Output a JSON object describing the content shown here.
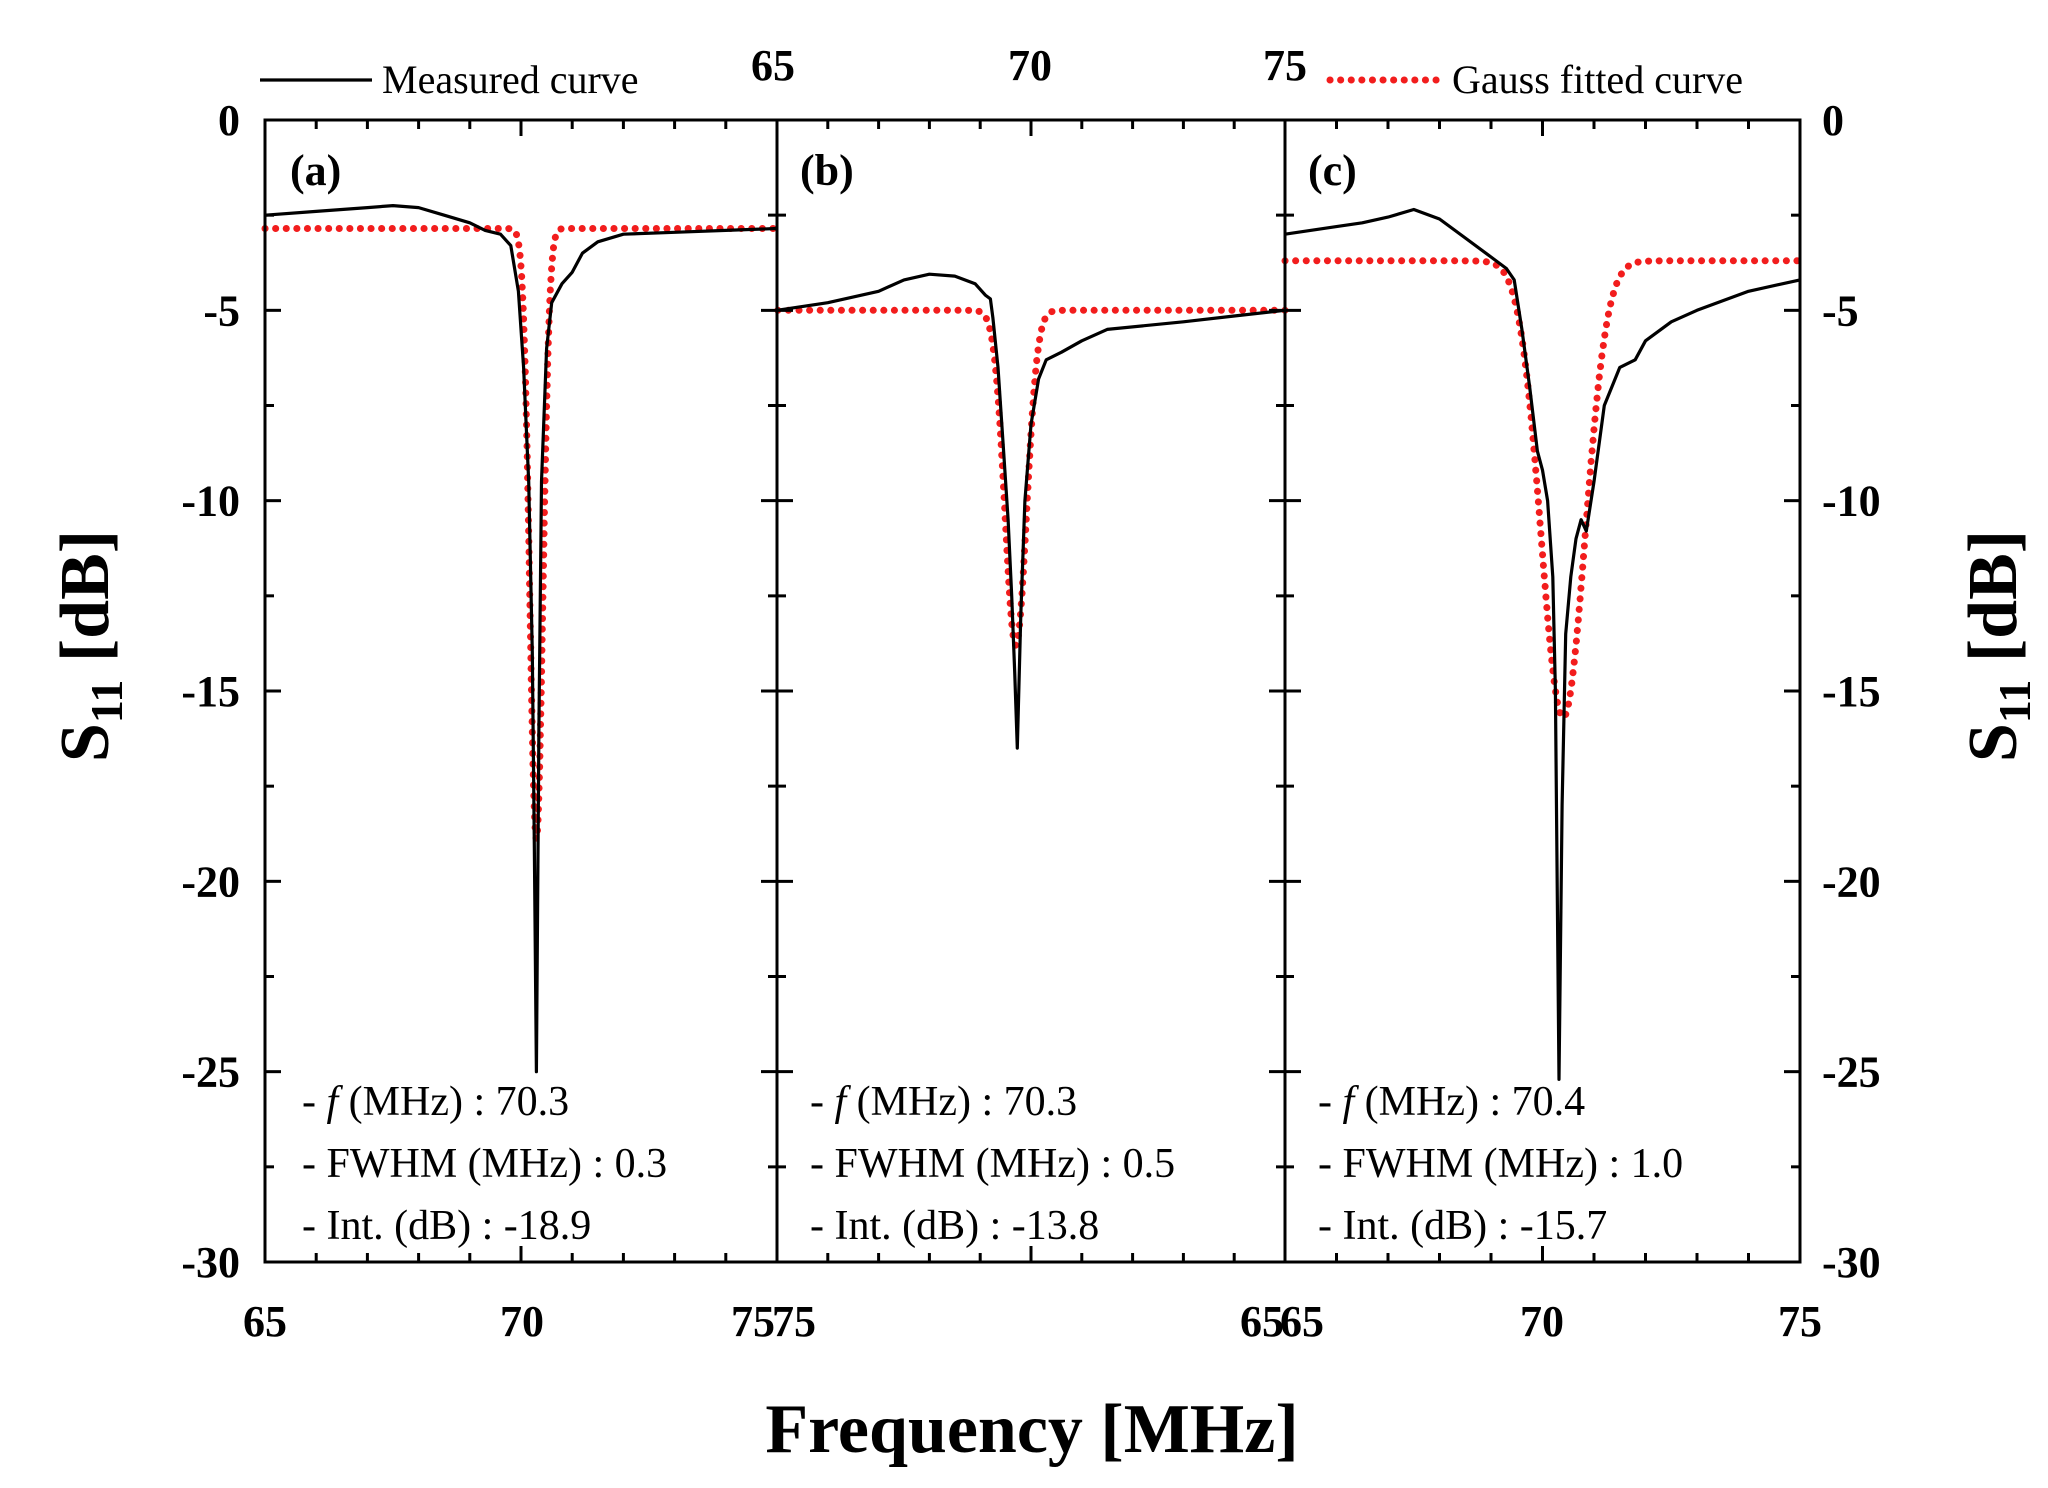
{
  "chart_data": {
    "type": "line",
    "ylabel_main": "S",
    "ylabel_sub": "11",
    "ylabel_unit": " [dB]",
    "xlabel": "Frequency [MHz]",
    "ylim": [
      -30,
      0
    ],
    "yticks": [
      0,
      -5,
      -10,
      -15,
      -20,
      -25,
      -30
    ],
    "ytick_labels": [
      "0",
      "-5",
      "-10",
      "-15",
      "-20",
      "-25",
      "-30"
    ],
    "bottom_tick_labels": [
      "65",
      "70",
      "75",
      "75",
      "65",
      "65",
      "70",
      "75"
    ],
    "top_tick_labels": [
      "65",
      "70",
      "75"
    ],
    "legend": {
      "measured": "Measured curve",
      "fitted": "Gauss fitted curve"
    },
    "colors": {
      "measured": "#000000",
      "fitted": "#f21d1d"
    },
    "panels": [
      {
        "label": "(a)",
        "xlim": [
          65,
          75
        ],
        "annotations": {
          "f_prefix": "- ",
          "f_symbol": "f",
          "f_text": " (MHz) : 70.3",
          "fwhm": "- FWHM (MHz) : 0.3",
          "int": "- Int. (dB) : -18.9"
        },
        "measured": [
          [
            65,
            -2.5
          ],
          [
            66,
            -2.4
          ],
          [
            67,
            -2.3
          ],
          [
            67.5,
            -2.25
          ],
          [
            68,
            -2.3
          ],
          [
            68.5,
            -2.5
          ],
          [
            69,
            -2.7
          ],
          [
            69.3,
            -2.9
          ],
          [
            69.6,
            -3.0
          ],
          [
            69.8,
            -3.3
          ],
          [
            69.95,
            -4.5
          ],
          [
            70.05,
            -6.5
          ],
          [
            70.15,
            -9.5
          ],
          [
            70.22,
            -14
          ],
          [
            70.26,
            -19
          ],
          [
            70.3,
            -25
          ],
          [
            70.35,
            -16
          ],
          [
            70.4,
            -9.5
          ],
          [
            70.5,
            -6
          ],
          [
            70.6,
            -4.8
          ],
          [
            70.8,
            -4.3
          ],
          [
            71,
            -4.0
          ],
          [
            71.2,
            -3.5
          ],
          [
            71.5,
            -3.2
          ],
          [
            72,
            -3.0
          ],
          [
            73,
            -2.95
          ],
          [
            74,
            -2.9
          ],
          [
            75,
            -2.85
          ]
        ],
        "fitted_fwhm": 0.3,
        "fitted_center": 70.3,
        "fitted_baseline": -2.85,
        "fitted_min": -18.9
      },
      {
        "label": "(b)",
        "xlim": [
          75,
          65
        ],
        "annotations": {
          "f_prefix": "- ",
          "f_symbol": "f",
          "f_text": " (MHz) : 70.3",
          "fwhm": "- FWHM (MHz) : 0.5",
          "int": "- Int. (dB) : -13.8"
        },
        "measured": [
          [
            75,
            -5.0
          ],
          [
            74,
            -4.8
          ],
          [
            73,
            -4.5
          ],
          [
            72.5,
            -4.2
          ],
          [
            72,
            -4.05
          ],
          [
            71.5,
            -4.1
          ],
          [
            71.1,
            -4.3
          ],
          [
            70.9,
            -4.6
          ],
          [
            70.8,
            -4.7
          ],
          [
            70.75,
            -5.2
          ],
          [
            70.65,
            -6.5
          ],
          [
            70.55,
            -8.5
          ],
          [
            70.45,
            -10.5
          ],
          [
            70.38,
            -12.5
          ],
          [
            70.32,
            -14.5
          ],
          [
            70.27,
            -16.5
          ],
          [
            70.2,
            -13
          ],
          [
            70.12,
            -10
          ],
          [
            70,
            -8
          ],
          [
            69.85,
            -6.8
          ],
          [
            69.7,
            -6.3
          ],
          [
            69.4,
            -6.1
          ],
          [
            69,
            -5.8
          ],
          [
            68.5,
            -5.5
          ],
          [
            67,
            -5.3
          ],
          [
            66,
            -5.15
          ],
          [
            65,
            -5.0
          ]
        ],
        "fitted_fwhm": 0.5,
        "fitted_center": 70.3,
        "fitted_baseline": -5.0,
        "fitted_min": -13.8
      },
      {
        "label": "(c)",
        "xlim": [
          65,
          75
        ],
        "annotations": {
          "f_prefix": "- ",
          "f_symbol": "f",
          "f_text": " (MHz) : 70.4",
          "fwhm": "- FWHM (MHz) : 1.0",
          "int": "- Int. (dB) : -15.7"
        },
        "measured": [
          [
            65,
            -3.0
          ],
          [
            66,
            -2.8
          ],
          [
            66.5,
            -2.7
          ],
          [
            67,
            -2.55
          ],
          [
            67.5,
            -2.35
          ],
          [
            68,
            -2.6
          ],
          [
            68.5,
            -3.1
          ],
          [
            69,
            -3.6
          ],
          [
            69.3,
            -3.9
          ],
          [
            69.45,
            -4.2
          ],
          [
            69.6,
            -5.5
          ],
          [
            69.75,
            -7
          ],
          [
            69.9,
            -8.7
          ],
          [
            70,
            -9.2
          ],
          [
            70.1,
            -10
          ],
          [
            70.2,
            -12
          ],
          [
            70.25,
            -15
          ],
          [
            70.32,
            -25.2
          ],
          [
            70.38,
            -18
          ],
          [
            70.45,
            -13.5
          ],
          [
            70.55,
            -12
          ],
          [
            70.65,
            -11
          ],
          [
            70.75,
            -10.5
          ],
          [
            70.85,
            -10.8
          ],
          [
            71,
            -9.5
          ],
          [
            71.2,
            -7.5
          ],
          [
            71.5,
            -6.5
          ],
          [
            71.8,
            -6.3
          ],
          [
            72,
            -5.8
          ],
          [
            72.5,
            -5.3
          ],
          [
            73,
            -5.0
          ],
          [
            74,
            -4.5
          ],
          [
            75,
            -4.2
          ]
        ],
        "fitted_fwhm": 1.0,
        "fitted_center": 70.4,
        "fitted_baseline": -3.7,
        "fitted_min": -15.7
      }
    ]
  }
}
